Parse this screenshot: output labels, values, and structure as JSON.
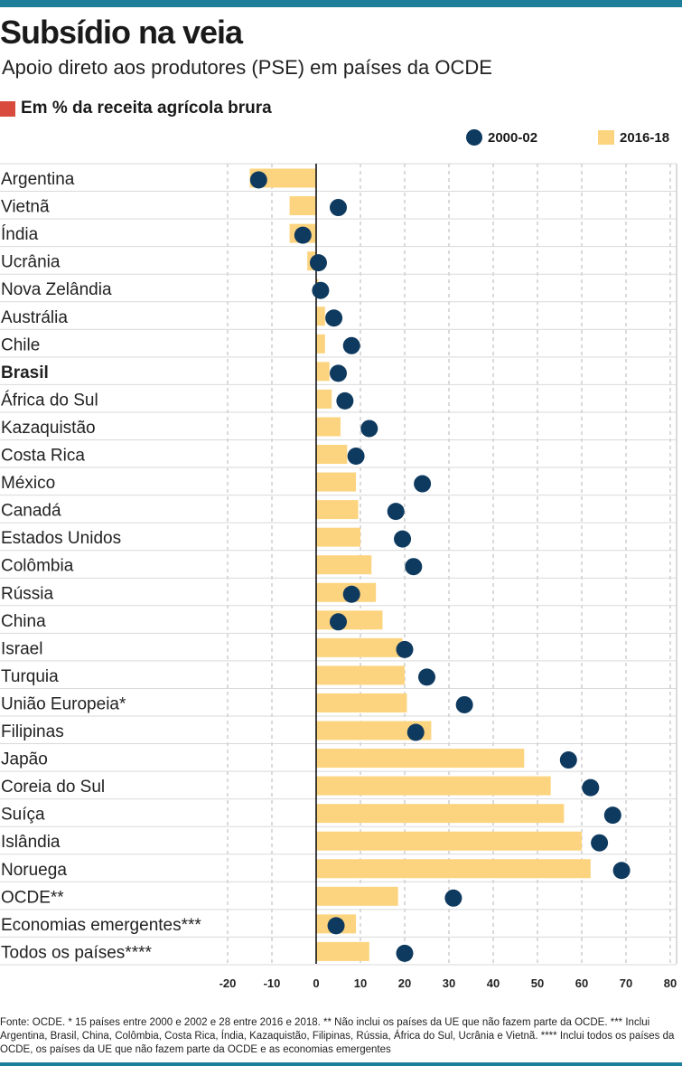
{
  "header": {
    "title": "Subsídio na veia",
    "subtitle": "Apoio direto aos produtores (PSE) em países da OCDE",
    "unit_label": "Em % da receita agrícola brura"
  },
  "colors": {
    "accent_bar": "#1e7f9a",
    "unit_square": "#d94b3c",
    "bar": "#fcd47f",
    "dot": "#0f3a5f"
  },
  "chart_data": {
    "type": "bar",
    "orientation": "horizontal",
    "xlim": [
      -20,
      80
    ],
    "xticks": [
      -20,
      -10,
      0,
      10,
      20,
      30,
      40,
      50,
      60,
      70,
      80
    ],
    "grid": true,
    "legend_position": "top-right",
    "legend": [
      {
        "name": "2000-02",
        "marker": "dot"
      },
      {
        "name": "2016-18",
        "marker": "bar"
      }
    ],
    "categories": [
      "Argentina",
      "Vietnã",
      "Índia",
      "Ucrânia",
      "Nova Zelândia",
      "Austrália",
      "Chile",
      "Brasil",
      "África do Sul",
      "Kazaquistão",
      "Costa Rica",
      "México",
      "Canadá",
      "Estados Unidos",
      "Colômbia",
      "Rússia",
      "China",
      "Israel",
      "Turquia",
      "União Europeia*",
      "Filipinas",
      "Japão",
      "Coreia do Sul",
      "Suíça",
      "Islândia",
      "Noruega",
      "OCDE**",
      "Economias emergentes***",
      "Todos os países****"
    ],
    "highlight": "Brasil",
    "series": [
      {
        "name": "2016-18",
        "type": "bar",
        "values": [
          -15,
          -6,
          -6,
          -2,
          0.5,
          2,
          2,
          3,
          3.5,
          5.5,
          7,
          9,
          9.5,
          10,
          12.5,
          13.5,
          15,
          19.5,
          20,
          20.5,
          26,
          47,
          53,
          56,
          60,
          62,
          18.5,
          9,
          12
        ]
      },
      {
        "name": "2000-02",
        "type": "dot",
        "values": [
          -13,
          5,
          -3,
          0.5,
          1,
          4,
          8,
          5,
          6.5,
          12,
          9,
          24,
          18,
          19.5,
          22,
          8,
          5,
          20,
          25,
          33.5,
          22.5,
          57,
          62,
          67,
          64,
          69,
          31,
          4.5,
          20
        ]
      }
    ]
  },
  "footnote": "Fonte: OCDE. * 15 países entre 2000 e 2002 e 28 entre 2016 e 2018. ** Não inclui os países da UE que não fazem parte da OCDE. *** Inclui Argentina, Brasil, China, Colômbia, Costa Rica, Índia, Kazaquistão, Filipinas, Rússia, África do Sul, Ucrânia e Vietnã. **** Inclui todos os países da OCDE, os países da UE que não fazem parte da OCDE e as economias emergentes"
}
